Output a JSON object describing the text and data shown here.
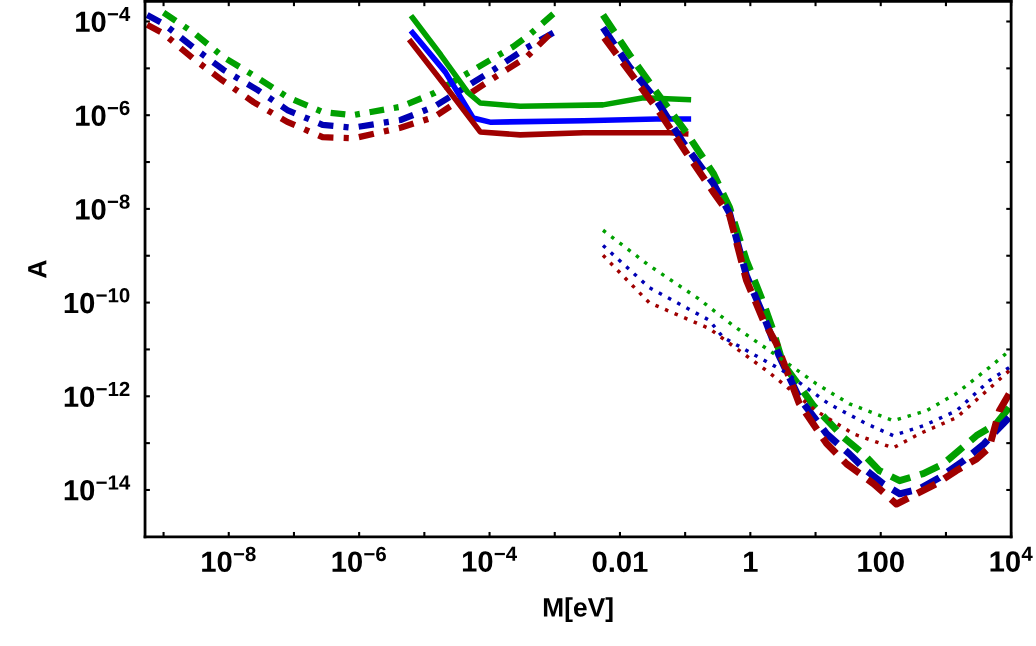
{
  "chart_data": {
    "type": "line",
    "xlabel": "M[eV]",
    "ylabel": "A",
    "log": "xy",
    "grid": false,
    "legend": false,
    "marker": "none",
    "xlim": [
      5.2e-10,
      10000
    ],
    "ylim": [
      1e-15,
      0.00027
    ],
    "xticks": [
      {
        "value": 1e-09,
        "label": null
      },
      {
        "value": 1e-08,
        "label": "10$^{−8}$"
      },
      {
        "value": 1e-07,
        "label": null
      },
      {
        "value": 1e-06,
        "label": "10$^{−6}$"
      },
      {
        "value": 1e-05,
        "label": null
      },
      {
        "value": 0.0001,
        "label": "10$^{−4}$"
      },
      {
        "value": 0.001,
        "label": null
      },
      {
        "value": 0.01,
        "label": "0.01"
      },
      {
        "value": 0.1,
        "label": null
      },
      1,
      {
        "value": 10,
        "label": null
      },
      100,
      {
        "value": 1000,
        "label": null
      },
      {
        "value": 10000,
        "label": "10$^{4}$"
      }
    ],
    "yticks": [
      {
        "value": 1e-14,
        "label": "10$^{−14}$"
      },
      {
        "value": 1e-13,
        "label": null
      },
      {
        "value": 1e-12,
        "label": "10$^{−12}$"
      },
      {
        "value": 1e-11,
        "label": null
      },
      {
        "value": 1e-10,
        "label": "10$^{−10}$"
      },
      {
        "value": 1e-09,
        "label": null
      },
      {
        "value": 1e-08,
        "label": "10$^{−8}$"
      },
      {
        "value": 1e-07,
        "label": null
      },
      {
        "value": 1e-06,
        "label": "10$^{−6}$"
      },
      {
        "value": 1e-05,
        "label": null
      },
      {
        "value": 0.0001,
        "label": "10$^{−4}$"
      }
    ],
    "series": [
      {
        "line_style": "dashdot",
        "color": "#00a000",
        "x": [
          1e-09,
          2.9e-09,
          8.3e-09,
          2.75e-08,
          7.9e-08,
          2.75e-07,
          7.9e-07,
          4.3e-06,
          1.4e-05,
          0.000115,
          0.00023,
          0.00041,
          0.00095
        ],
        "values": [
          0.000155,
          5.75e-05,
          1.74e-05,
          6.3e-06,
          2.45e-06,
          1.17e-06,
          1e-06,
          1.51e-06,
          2.95e-06,
          1.66e-05,
          2.9e-05,
          5.25e-05,
          0.000145
        ]
      },
      {
        "line_style": "dashdot",
        "color": "#0000b4",
        "x": [
          5.6e-10,
          1e-09,
          2.9e-09,
          8.3e-09,
          2.75e-08,
          7.9e-08,
          2.75e-07,
          7.9e-07,
          4.3e-06,
          1.4e-05,
          0.000115,
          0.00037,
          0.00095
        ],
        "values": [
          0.000138,
          8.9e-05,
          2.75e-05,
          9.3e-06,
          3.47e-06,
          1.29e-06,
          6.2e-07,
          5.4e-07,
          7.9e-07,
          1.51e-06,
          9.3e-06,
          2.75e-05,
          5.75e-05
        ]
      },
      {
        "line_style": "dashdot",
        "color": "#a00000",
        "x": [
          5.6e-10,
          1e-09,
          2.9e-09,
          7.9e-09,
          2.4e-08,
          7.9e-08,
          2.75e-07,
          8.1e-07,
          4.3e-06,
          1.4e-05,
          0.000115,
          0.00037,
          0.00083
        ],
        "values": [
          8.5e-05,
          5.5e-05,
          1.58e-05,
          5.6e-06,
          1.9e-06,
          7.2e-07,
          3.4e-07,
          3.2e-07,
          5.4e-07,
          9.1e-07,
          6.2e-06,
          1.74e-05,
          5.25e-05
        ]
      },
      {
        "line_style": "solid",
        "color": "#00a000",
        "x": [
          6.6e-06,
          1.78e-05,
          4.6e-05,
          7.2e-05,
          0.000295,
          0.0055,
          0.023,
          0.112
        ],
        "values": [
          0.00012,
          1.95e-05,
          3.1e-06,
          1.82e-06,
          1.55e-06,
          1.66e-06,
          2.35e-06,
          2.14e-06
        ]
      },
      {
        "line_style": "solid",
        "color": "#0000ff",
        "x": [
          6.6e-06,
          2.1e-05,
          5.6e-05,
          0.000102,
          0.00275,
          0.036,
          0.112
        ],
        "values": [
          5.75e-05,
          8.3e-06,
          8.7e-07,
          7.1e-07,
          7.6e-07,
          8.3e-07,
          8.3e-07
        ]
      },
      {
        "line_style": "solid",
        "color": "#a00000",
        "x": [
          6.2e-06,
          2.1e-05,
          7.2e-05,
          0.000295,
          0.00275,
          0.058,
          0.102
        ],
        "values": [
          3.7e-05,
          4.2e-06,
          4.4e-07,
          3.8e-07,
          4.2e-07,
          4.2e-07,
          4e-07
        ]
      },
      {
        "line_style": "dashed",
        "color": "#00a000",
        "x": [
          0.0055,
          0.014,
          0.036,
          0.105,
          0.27,
          0.48,
          0.87,
          1.58,
          2.24,
          3.16,
          5.6,
          9.3,
          27,
          54,
          95,
          195,
          450,
          910,
          2950,
          5900,
          9300
        ],
        "values": [
          0.000138,
          1.95e-05,
          3.16e-06,
          4.2e-07,
          5.75e-08,
          1.07e-08,
          7.9e-10,
          1e-10,
          2.5e-11,
          5e-12,
          1.7e-12,
          6.3e-13,
          1.32e-13,
          5.9e-14,
          2.6e-14,
          1.58e-14,
          2.24e-14,
          3.6e-14,
          1.45e-13,
          2.6e-13,
          5.75e-13
        ]
      },
      {
        "line_style": "dashed",
        "color": "#0000b4",
        "x": [
          0.0055,
          0.014,
          0.036,
          0.093,
          0.27,
          0.48,
          0.87,
          1.58,
          2.75,
          5.6,
          14.8,
          33,
          60,
          110,
          195,
          390,
          790,
          1860,
          3800,
          5900,
          9300
        ],
        "values": [
          7.4e-05,
          1.07e-05,
          2.14e-06,
          2.6e-07,
          3.5e-08,
          8.1e-09,
          3.8e-10,
          5.4e-11,
          7.4e-12,
          9.3e-13,
          1.58e-13,
          5.9e-14,
          2.6e-14,
          1.35e-14,
          8.3e-15,
          1.05e-14,
          1.82e-14,
          4.2e-14,
          9.5e-14,
          1.82e-13,
          3.5e-13
        ]
      },
      {
        "line_style": "dashed",
        "color": "#a00000",
        "x": [
          0.00575,
          0.016,
          0.041,
          0.105,
          0.27,
          0.48,
          0.87,
          1.58,
          2.5,
          5.6,
          14.8,
          30,
          78,
          174,
          355,
          710,
          1450,
          2950,
          4600,
          6600,
          9300
        ],
        "values": [
          4.5e-05,
          6.6e-06,
          1.12e-06,
          1.55e-07,
          2.3e-08,
          7.4e-09,
          3e-10,
          4.2e-11,
          1.35e-11,
          7.1e-13,
          9.8e-14,
          3.6e-14,
          1.35e-14,
          5e-15,
          8.3e-15,
          1.35e-14,
          2.6e-14,
          4.6e-14,
          7.9e-14,
          4.9e-13,
          1.12e-12
        ]
      },
      {
        "line_style": "dotted",
        "color": "#00a000",
        "x": [
          0.0055,
          0.028,
          0.158,
          0.55,
          1.95,
          10.2,
          33,
          155,
          500,
          1450,
          4600,
          8300
        ],
        "values": [
          3.5e-09,
          6.2e-10,
          1.23e-10,
          3.2e-11,
          9.5e-12,
          1.86e-12,
          6.9e-13,
          3e-13,
          4.9e-13,
          1.15e-12,
          4.1e-12,
          8.1e-12
        ]
      },
      {
        "line_style": "dotted",
        "color": "#0000b4",
        "x": [
          0.0055,
          0.028,
          0.234,
          0.38,
          3.16,
          16,
          60,
          155,
          450,
          1450,
          4600,
          9300
        ],
        "values": [
          1.66e-09,
          2.1e-10,
          4.2e-11,
          1.82e-11,
          3.5e-12,
          6.9e-13,
          2.6e-13,
          1.45e-13,
          2.35e-13,
          4.9e-13,
          2.14e-12,
          4.1e-12
        ]
      },
      {
        "line_style": "dotted",
        "color": "#a00000",
        "x": [
          0.0055,
          0.028,
          0.234,
          1.95,
          10.2,
          38,
          155,
          390,
          1450,
          4600,
          9300
        ],
        "values": [
          1.02e-09,
          1e-10,
          2.8e-11,
          3.2e-12,
          4.9e-13,
          1.58e-13,
          7.9e-14,
          1.58e-13,
          3.5e-13,
          1.45e-12,
          3.5e-12
        ]
      }
    ]
  }
}
